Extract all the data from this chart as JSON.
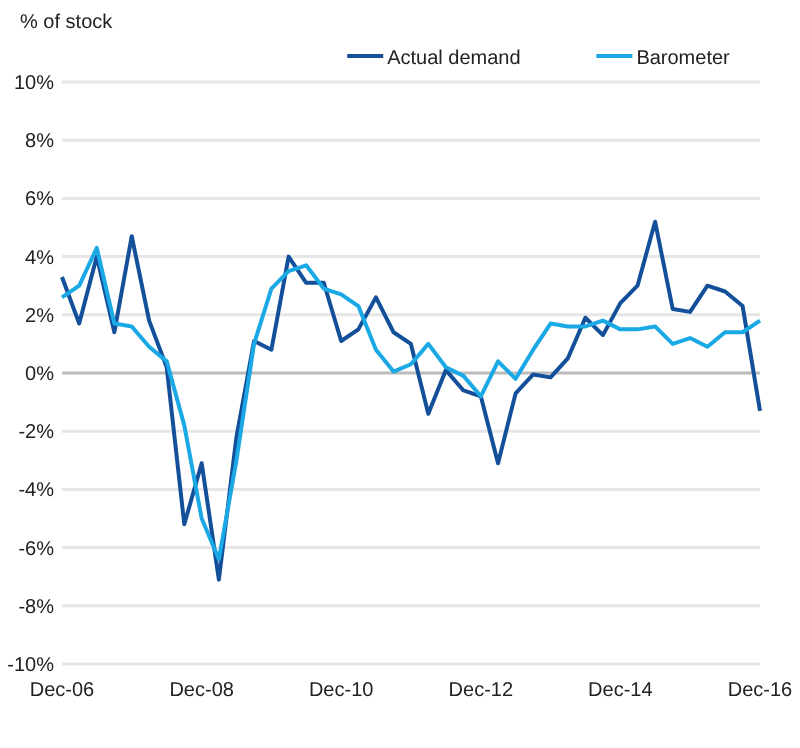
{
  "chart_data": {
    "type": "line",
    "ylabel": "% of stock",
    "x": [
      "2006-12",
      "2007-03",
      "2007-06",
      "2007-09",
      "2007-12",
      "2008-03",
      "2008-06",
      "2008-09",
      "2008-12",
      "2009-03",
      "2009-06",
      "2009-09",
      "2009-12",
      "2010-03",
      "2010-06",
      "2010-09",
      "2010-12",
      "2011-03",
      "2011-06",
      "2011-09",
      "2011-12",
      "2012-03",
      "2012-06",
      "2012-09",
      "2012-12",
      "2013-03",
      "2013-06",
      "2013-09",
      "2013-12",
      "2014-03",
      "2014-06",
      "2014-09",
      "2014-12",
      "2015-03",
      "2015-06",
      "2015-09",
      "2015-12",
      "2016-03",
      "2016-06",
      "2016-09",
      "2016-12"
    ],
    "series": [
      {
        "name": "Actual demand",
        "color": "#14509a",
        "values": [
          3.3,
          1.7,
          4.0,
          1.4,
          4.7,
          1.8,
          0.2,
          -5.2,
          -3.1,
          -7.1,
          -2.2,
          1.1,
          0.8,
          4.0,
          3.1,
          3.1,
          1.1,
          1.5,
          2.6,
          1.4,
          1.0,
          -1.4,
          0.1,
          -0.6,
          -0.8,
          -3.1,
          -0.7,
          -0.05,
          -0.15,
          0.5,
          1.9,
          1.3,
          2.4,
          3.0,
          5.2,
          2.2,
          2.1,
          3.0,
          2.8,
          2.3,
          -1.3
        ]
      },
      {
        "name": "Barometer",
        "color": "#1ba9e6",
        "values": [
          2.6,
          3.0,
          4.3,
          1.7,
          1.6,
          0.9,
          0.4,
          -1.8,
          -5.0,
          -6.4,
          -3.0,
          1.0,
          2.9,
          3.5,
          3.7,
          2.9,
          2.7,
          2.3,
          0.8,
          0.05,
          0.3,
          1.0,
          0.2,
          -0.1,
          -0.8,
          0.4,
          -0.2,
          0.8,
          1.7,
          1.6,
          1.6,
          1.8,
          1.5,
          1.5,
          1.6,
          1.0,
          1.2,
          0.9,
          1.4,
          1.4,
          1.8
        ]
      }
    ],
    "xlim": [
      "2006-12",
      "2016-12"
    ],
    "xticks": [
      {
        "value": "2006-12",
        "label": "Dec-06"
      },
      {
        "value": "2008-12",
        "label": "Dec-08"
      },
      {
        "value": "2010-12",
        "label": "Dec-10"
      },
      {
        "value": "2012-12",
        "label": "Dec-12"
      },
      {
        "value": "2014-12",
        "label": "Dec-14"
      },
      {
        "value": "2016-12",
        "label": "Dec-16"
      }
    ],
    "ylim": [
      -10,
      10
    ],
    "yticks": [
      {
        "value": -10,
        "label": "-10%"
      },
      {
        "value": -8,
        "label": "-8%"
      },
      {
        "value": -6,
        "label": "-6%"
      },
      {
        "value": -4,
        "label": "-4%"
      },
      {
        "value": -2,
        "label": "-2%"
      },
      {
        "value": 0,
        "label": "0%"
      },
      {
        "value": 2,
        "label": "2%"
      },
      {
        "value": 4,
        "label": "4%"
      },
      {
        "value": 6,
        "label": "6%"
      },
      {
        "value": 8,
        "label": "8%"
      },
      {
        "value": 10,
        "label": "10%"
      }
    ],
    "grid": "y",
    "legend": "top right",
    "marker": "none",
    "line_style": "solid"
  }
}
